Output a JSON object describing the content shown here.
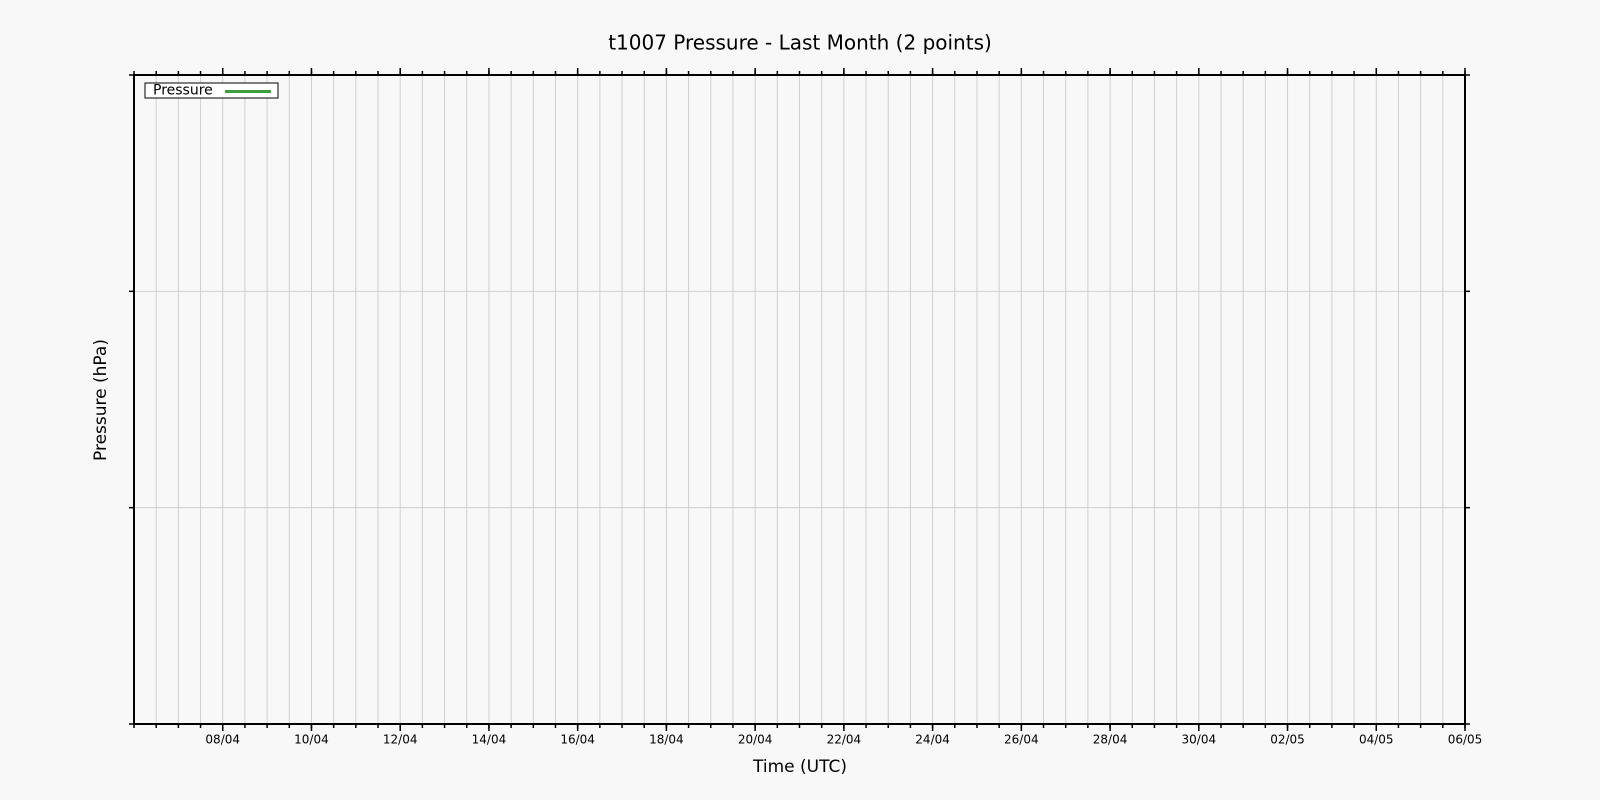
{
  "chart_data": {
    "type": "line",
    "title": "t1007 Pressure - Last Month (2 points)",
    "x_label": "Time (UTC)",
    "y_label": "Pressure (hPa)",
    "xlim": [
      "06/04",
      "06/05"
    ],
    "xticks": [
      "08/04",
      "10/04",
      "12/04",
      "14/04",
      "16/04",
      "18/04",
      "20/04",
      "22/04",
      "24/04",
      "26/04",
      "28/04",
      "30/04",
      "02/05",
      "04/05",
      "06/05"
    ],
    "series": [
      {
        "name": "Pressure",
        "color": "#3f9f3f"
      }
    ],
    "grid": true,
    "legend": "upper-left"
  }
}
